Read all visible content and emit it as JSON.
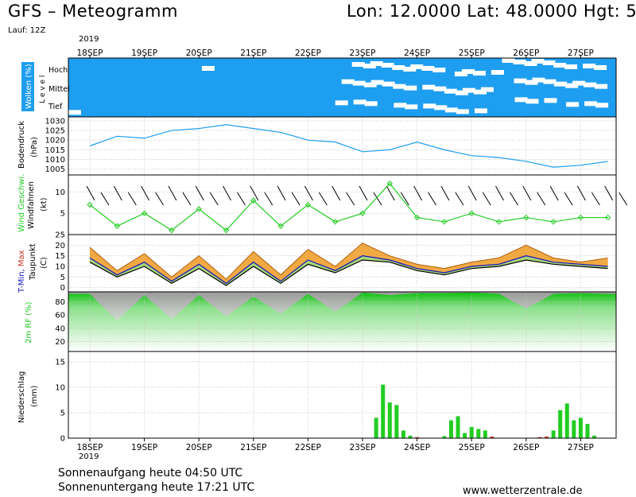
{
  "header": {
    "title": "GFS – Meteogramm",
    "location": "Lon: 12.0000 Lat: 48.0000 Hgt: 5",
    "run": "Lauf: 12Z",
    "year_top": "2019",
    "year_bottom": "2019"
  },
  "footer": {
    "sunrise": "Sonnenaufgang heute 04:50 UTC",
    "sunset": "Sonnenuntergang heute 17:21 UTC",
    "site": "www.wetterzentrale.de"
  },
  "colors": {
    "cloud_blue": "#1e9ef0",
    "pressure_line": "#1e9ef0",
    "wind_line": "#22cc22",
    "humidity_green": "#22cc22",
    "precip_green": "#22cc22",
    "precip_red": "#cc3322",
    "tmax_orange": "#f0a030",
    "tmin_blue": "#1010c0"
  },
  "chart_data": [
    {
      "type": "heatmap",
      "panel": "clouds",
      "ylabel": "Wolken (%)",
      "level_label": "L e v e l",
      "levels": [
        "Hoch",
        "Mittel",
        "Tief"
      ],
      "x": [
        "18SEP",
        "19SEP",
        "20SEP",
        "21SEP",
        "22SEP",
        "23SEP",
        "24SEP",
        "25SEP",
        "26SEP",
        "27SEP"
      ],
      "cover_high": [
        95,
        95,
        90,
        95,
        100,
        55,
        40,
        50,
        45,
        50
      ],
      "cover_mid": [
        100,
        100,
        100,
        100,
        100,
        45,
        50,
        45,
        50,
        40
      ],
      "cover_low": [
        90,
        95,
        100,
        100,
        100,
        60,
        55,
        60,
        70,
        65
      ]
    },
    {
      "type": "line",
      "panel": "pressure",
      "ylabel": "Bodendruck",
      "yunit": "(hPa)",
      "ylim": [
        1002,
        1032
      ],
      "yticks": [
        1005,
        1010,
        1015,
        1020,
        1025,
        1030
      ],
      "x": [
        "18SEP 00Z",
        "18SEP 12Z",
        "19SEP 00Z",
        "19SEP 12Z",
        "20SEP 00Z",
        "20SEP 12Z",
        "21SEP 00Z",
        "21SEP 12Z",
        "22SEP 00Z",
        "22SEP 12Z",
        "23SEP 00Z",
        "23SEP 12Z",
        "24SEP 00Z",
        "24SEP 12Z",
        "25SEP 00Z",
        "25SEP 12Z",
        "26SEP 00Z",
        "26SEP 12Z",
        "27SEP 00Z",
        "27SEP 12Z"
      ],
      "values": [
        1017,
        1022,
        1021,
        1025,
        1026,
        1028,
        1026,
        1024,
        1020,
        1019,
        1014,
        1015,
        1019,
        1015,
        1012,
        1011,
        1009,
        1006,
        1007,
        1009
      ]
    },
    {
      "type": "line",
      "panel": "wind",
      "ylabel_colored": "Wind Geschwi.",
      "ylabel": "Windfahnen",
      "yunit": "(kt)",
      "ylim": [
        0,
        14
      ],
      "yticks": [
        5,
        10
      ],
      "x": [
        "18SEP 00Z",
        "18SEP 12Z",
        "19SEP 00Z",
        "19SEP 12Z",
        "20SEP 00Z",
        "20SEP 12Z",
        "21SEP 00Z",
        "21SEP 12Z",
        "22SEP 00Z",
        "22SEP 12Z",
        "23SEP 00Z",
        "23SEP 12Z",
        "24SEP 00Z",
        "24SEP 12Z",
        "25SEP 00Z",
        "25SEP 12Z",
        "26SEP 00Z",
        "26SEP 12Z",
        "27SEP 00Z",
        "27SEP 12Z"
      ],
      "values": [
        7,
        2,
        5,
        1,
        6,
        1,
        8,
        2,
        7,
        3,
        5,
        12,
        4,
        3,
        5,
        3,
        4,
        3,
        4,
        4
      ]
    },
    {
      "type": "area",
      "panel": "temperature",
      "ylabel_parts": [
        "T-Min, ",
        "Max"
      ],
      "ylabel": "Taupunkt",
      "yunit": "(C)",
      "ylim": [
        -2,
        25
      ],
      "yticks": [
        0,
        5,
        10,
        15,
        20,
        25
      ],
      "x": [
        "18SEP 00Z",
        "18SEP 12Z",
        "19SEP 00Z",
        "19SEP 12Z",
        "20SEP 00Z",
        "20SEP 12Z",
        "21SEP 00Z",
        "21SEP 12Z",
        "22SEP 00Z",
        "22SEP 12Z",
        "23SEP 00Z",
        "23SEP 12Z",
        "24SEP 00Z",
        "24SEP 12Z",
        "25SEP 00Z",
        "25SEP 12Z",
        "26SEP 00Z",
        "26SEP 12Z",
        "27SEP 00Z",
        "27SEP 12Z"
      ],
      "series": [
        {
          "name": "T-Max",
          "values": [
            19,
            8,
            16,
            5,
            15,
            4,
            17,
            6,
            18,
            10,
            21,
            15,
            11,
            9,
            12,
            14,
            20,
            14,
            12,
            14
          ]
        },
        {
          "name": "T-Min",
          "values": [
            14,
            6,
            12,
            3,
            11,
            2,
            12,
            3,
            13,
            8,
            15,
            13,
            9,
            7,
            10,
            11,
            15,
            12,
            11,
            10
          ]
        },
        {
          "name": "Taupunkt",
          "values": [
            12,
            5,
            10,
            2,
            9,
            1,
            10,
            2,
            11,
            7,
            13,
            12,
            8,
            6,
            9,
            10,
            13,
            11,
            10,
            9
          ]
        }
      ]
    },
    {
      "type": "area",
      "panel": "humidity",
      "ylabel": "2m RF (%)",
      "ylim": [
        5,
        95
      ],
      "yticks": [
        20,
        40,
        60,
        80
      ],
      "x": [
        "18SEP 00Z",
        "18SEP 12Z",
        "19SEP 00Z",
        "19SEP 12Z",
        "20SEP 00Z",
        "20SEP 12Z",
        "21SEP 00Z",
        "21SEP 12Z",
        "22SEP 00Z",
        "22SEP 12Z",
        "23SEP 00Z",
        "23SEP 12Z",
        "24SEP 00Z",
        "24SEP 12Z",
        "25SEP 00Z",
        "25SEP 12Z",
        "26SEP 00Z",
        "26SEP 12Z",
        "27SEP 00Z",
        "27SEP 12Z"
      ],
      "values": [
        92,
        52,
        90,
        54,
        90,
        58,
        88,
        62,
        92,
        65,
        94,
        90,
        93,
        93,
        94,
        92,
        70,
        92,
        93,
        92
      ]
    },
    {
      "type": "bar",
      "panel": "precipitation",
      "ylabel": "Niederschlag",
      "yunit": "(mm)",
      "ylim": [
        0,
        17
      ],
      "yticks": [
        0,
        5,
        10,
        15
      ],
      "xticks": [
        "18SEP",
        "19SEP",
        "20SEP",
        "21SEP",
        "22SEP",
        "23SEP",
        "24SEP",
        "25SEP",
        "26SEP",
        "27SEP"
      ],
      "x": [
        "23SEP 06Z",
        "23SEP 09Z",
        "23SEP 12Z",
        "23SEP 15Z",
        "23SEP 18Z",
        "23SEP 21Z",
        "24SEP 00Z",
        "24SEP 12Z",
        "24SEP 15Z",
        "24SEP 18Z",
        "24SEP 21Z",
        "25SEP 00Z",
        "25SEP 03Z",
        "25SEP 06Z",
        "25SEP 09Z",
        "26SEP 06Z",
        "26SEP 09Z",
        "26SEP 12Z",
        "26SEP 15Z",
        "26SEP 18Z",
        "26SEP 21Z",
        "27SEP 00Z",
        "27SEP 03Z",
        "27SEP 06Z"
      ],
      "values": [
        4,
        10.5,
        7,
        6.5,
        1.5,
        0.5,
        0.2,
        0.4,
        3.5,
        4.3,
        1,
        2.2,
        1.8,
        1.5,
        0.3,
        0.2,
        0.3,
        1.5,
        5.5,
        6.8,
        3.5,
        4,
        2.8,
        0.5
      ]
    }
  ]
}
